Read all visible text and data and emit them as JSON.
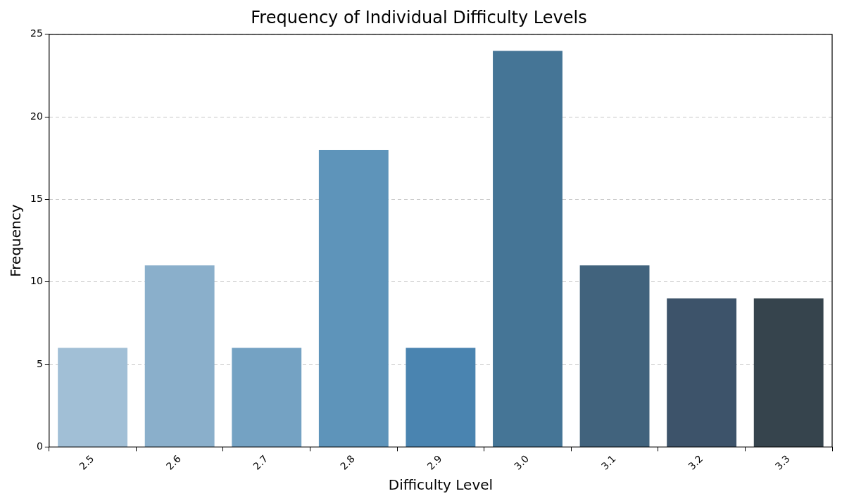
{
  "chart_data": {
    "type": "bar",
    "title": "Frequency of Individual Difficulty Levels",
    "xlabel": "Difficulty Level",
    "ylabel": "Frequency",
    "categories": [
      "2.5",
      "2.6",
      "2.7",
      "2.8",
      "2.9",
      "3.0",
      "3.1",
      "3.2",
      "3.3"
    ],
    "values": [
      6,
      11,
      6,
      18,
      6,
      24,
      11,
      9,
      9
    ],
    "colors": [
      "#a1bfd6",
      "#8aafcb",
      "#74a2c3",
      "#5e94ba",
      "#4a84b0",
      "#457596",
      "#41637d",
      "#3d536a",
      "#36444d"
    ],
    "ylim": [
      0,
      25
    ],
    "yticks": [
      0,
      5,
      10,
      15,
      20,
      25
    ],
    "grid": "y"
  }
}
